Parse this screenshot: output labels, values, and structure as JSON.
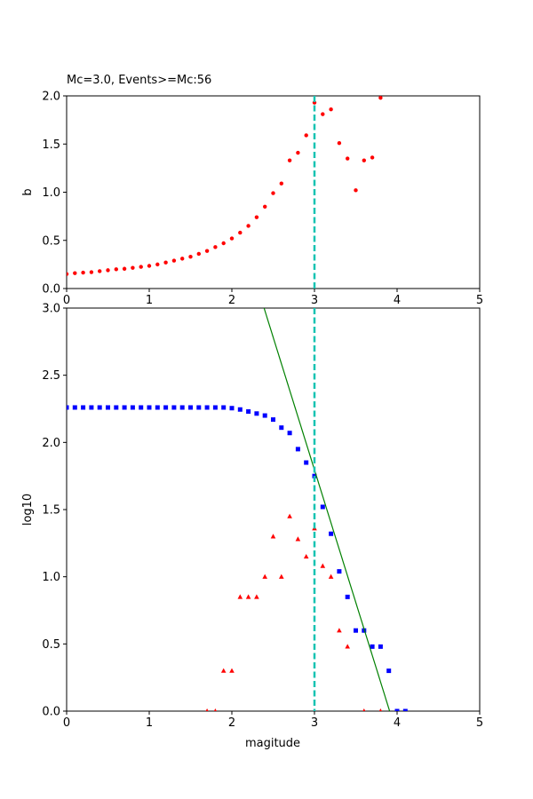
{
  "chart_data": [
    {
      "type": "scatter",
      "title": "Mc=3.0, Events>=Mc:56",
      "xlabel": "",
      "ylabel": "b",
      "xlim": [
        0,
        5
      ],
      "ylim": [
        0,
        2.0
      ],
      "xticks": [
        "0",
        "1",
        "2",
        "3",
        "4",
        "5"
      ],
      "yticks": [
        "0.0",
        "0.5",
        "1.0",
        "1.5",
        "2.0"
      ],
      "grid": false,
      "series": [
        {
          "color": "#ff0000",
          "marker": "circle",
          "x": [
            0.0,
            0.1,
            0.2,
            0.3,
            0.4,
            0.5,
            0.6,
            0.7,
            0.8,
            0.9,
            1.0,
            1.1,
            1.2,
            1.3,
            1.4,
            1.5,
            1.6,
            1.7,
            1.8,
            1.9,
            2.0,
            2.1,
            2.2,
            2.3,
            2.4,
            2.5,
            2.6,
            2.7,
            2.8,
            2.9,
            3.0,
            3.1,
            3.2,
            3.3,
            3.4,
            3.5,
            3.6,
            3.7,
            3.8
          ],
          "y": [
            0.15,
            0.16,
            0.165,
            0.17,
            0.18,
            0.19,
            0.2,
            0.205,
            0.215,
            0.225,
            0.235,
            0.25,
            0.27,
            0.29,
            0.31,
            0.33,
            0.36,
            0.39,
            0.43,
            0.47,
            0.52,
            0.58,
            0.65,
            0.74,
            0.85,
            0.99,
            1.09,
            1.33,
            1.41,
            1.59,
            1.93,
            1.81,
            1.86,
            1.51,
            1.35,
            1.02,
            1.33,
            1.36,
            1.98
          ]
        }
      ],
      "vline": {
        "x": 3.0,
        "color": "#17c3b2",
        "style": "dashed"
      }
    },
    {
      "type": "scatter",
      "title": "",
      "xlabel": "magitude",
      "ylabel": "log10",
      "xlim": [
        0,
        5
      ],
      "ylim": [
        0,
        3.0
      ],
      "xticks": [
        "0",
        "1",
        "2",
        "3",
        "4",
        "5"
      ],
      "yticks": [
        "0.0",
        "0.5",
        "1.0",
        "1.5",
        "2.0",
        "2.5",
        "3.0"
      ],
      "grid": false,
      "series": [
        {
          "color": "#0000ff",
          "marker": "square",
          "x": [
            0.0,
            0.1,
            0.2,
            0.3,
            0.4,
            0.5,
            0.6,
            0.7,
            0.8,
            0.9,
            1.0,
            1.1,
            1.2,
            1.3,
            1.4,
            1.5,
            1.6,
            1.7,
            1.8,
            1.9,
            2.0,
            2.1,
            2.2,
            2.3,
            2.4,
            2.5,
            2.6,
            2.7,
            2.8,
            2.9,
            3.0,
            3.1,
            3.2,
            3.3,
            3.4,
            3.5,
            3.6,
            3.7,
            3.8,
            3.9,
            4.0,
            4.1
          ],
          "y": [
            2.26,
            2.26,
            2.26,
            2.26,
            2.26,
            2.26,
            2.26,
            2.26,
            2.26,
            2.26,
            2.26,
            2.26,
            2.26,
            2.26,
            2.26,
            2.26,
            2.26,
            2.26,
            2.26,
            2.26,
            2.255,
            2.245,
            2.23,
            2.215,
            2.2,
            2.17,
            2.11,
            2.07,
            1.95,
            1.85,
            1.75,
            1.52,
            1.32,
            1.04,
            0.85,
            0.6,
            0.6,
            0.48,
            0.48,
            0.3,
            0.0,
            0.0
          ]
        },
        {
          "color": "#ff0000",
          "marker": "triangle",
          "x": [
            1.7,
            1.8,
            1.9,
            2.0,
            2.1,
            2.2,
            2.3,
            2.4,
            2.5,
            2.6,
            2.7,
            2.8,
            2.9,
            3.0,
            3.1,
            3.2,
            3.3,
            3.4,
            3.6,
            3.8
          ],
          "y": [
            0.0,
            0.0,
            0.3,
            0.3,
            0.85,
            0.85,
            0.85,
            1.0,
            1.3,
            1.0,
            1.45,
            1.28,
            1.15,
            1.36,
            1.08,
            1.0,
            0.6,
            0.48,
            0.0,
            0.0
          ]
        },
        {
          "color": "#008000",
          "marker": "line",
          "x": [
            2.39,
            3.91
          ],
          "y": [
            3.0,
            0.0
          ]
        }
      ],
      "vline": {
        "x": 3.0,
        "color": "#17c3b2",
        "style": "dashed"
      }
    }
  ]
}
